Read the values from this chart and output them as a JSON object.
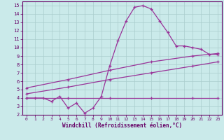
{
  "title": "",
  "xlabel": "Windchill (Refroidissement éolien,°C)",
  "ylabel": "",
  "bg_color": "#caeaea",
  "line_color": "#993399",
  "grid_color": "#aacccc",
  "xlim": [
    -0.5,
    23.5
  ],
  "ylim": [
    2,
    15.5
  ],
  "xticks": [
    0,
    1,
    2,
    3,
    4,
    5,
    6,
    7,
    8,
    9,
    10,
    11,
    12,
    13,
    14,
    15,
    16,
    17,
    18,
    19,
    20,
    21,
    22,
    23
  ],
  "yticks": [
    2,
    3,
    4,
    5,
    6,
    7,
    8,
    9,
    10,
    11,
    12,
    13,
    14,
    15
  ],
  "series": [
    {
      "x": [
        0,
        5,
        10,
        15,
        20,
        23
      ],
      "y": [
        4.0,
        4.0,
        4.0,
        4.0,
        4.0,
        4.0
      ]
    },
    {
      "x": [
        0,
        5,
        10,
        15,
        20,
        23
      ],
      "y": [
        4.5,
        5.3,
        6.2,
        7.0,
        7.8,
        8.3
      ]
    },
    {
      "x": [
        0,
        5,
        10,
        15,
        20,
        23
      ],
      "y": [
        5.2,
        6.2,
        7.3,
        8.3,
        9.0,
        9.3
      ]
    },
    {
      "x": [
        0,
        1,
        2,
        3,
        4,
        5,
        6,
        7,
        8,
        9,
        10,
        11,
        12,
        13,
        14,
        15,
        16,
        17,
        18,
        19,
        20,
        21,
        22,
        23
      ],
      "y": [
        4.0,
        4.0,
        4.0,
        3.6,
        4.2,
        2.8,
        3.4,
        2.2,
        2.8,
        4.2,
        7.8,
        10.8,
        13.2,
        14.8,
        15.0,
        14.6,
        13.2,
        11.8,
        10.2,
        10.2,
        10.0,
        9.8,
        9.2,
        9.2
      ]
    }
  ]
}
